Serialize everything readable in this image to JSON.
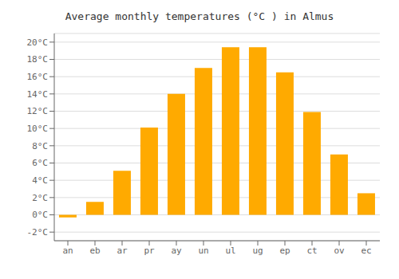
{
  "chart_data": {
    "type": "bar",
    "title": "Average monthly temperatures (°C ) in Almus",
    "categories": [
      "an",
      "eb",
      "ar",
      "pr",
      "ay",
      "un",
      "ul",
      "ug",
      "ep",
      "ct",
      "ov",
      "ec"
    ],
    "values": [
      -0.3,
      1.5,
      5.1,
      10.1,
      14.0,
      17.0,
      19.4,
      19.4,
      16.5,
      11.9,
      7.0,
      2.5
    ],
    "color": "#FFAA00",
    "ylim": [
      -3,
      21
    ],
    "yticks": [
      {
        "value": -2,
        "label": "-2°C"
      },
      {
        "value": 0,
        "label": "0°C"
      },
      {
        "value": 2,
        "label": "2°C"
      },
      {
        "value": 4,
        "label": "4°C"
      },
      {
        "value": 6,
        "label": "6°C"
      },
      {
        "value": 8,
        "label": "8°C"
      },
      {
        "value": 10,
        "label": "10°C"
      },
      {
        "value": 12,
        "label": "12°C"
      },
      {
        "value": 14,
        "label": "14°C"
      },
      {
        "value": 16,
        "label": "16°C"
      },
      {
        "value": 18,
        "label": "18°C"
      },
      {
        "value": 20,
        "label": "20°C"
      }
    ],
    "grid": true
  }
}
